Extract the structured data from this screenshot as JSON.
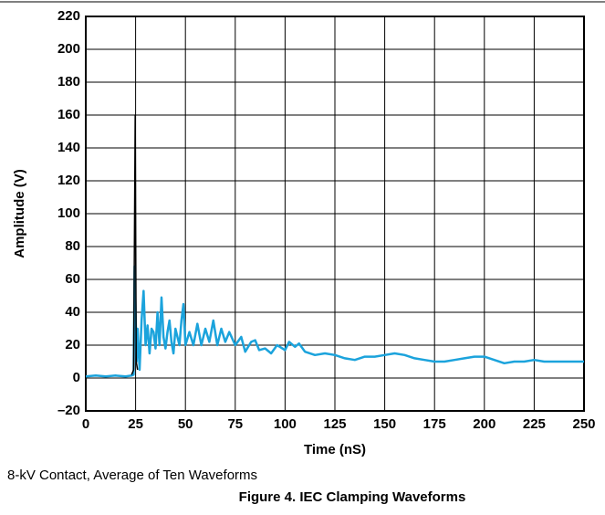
{
  "chart_data": {
    "type": "line",
    "caption": "8-kV Contact, Average of Ten Waveforms",
    "title": "Figure 4. IEC Clamping Waveforms",
    "x_label": "Time (nS)",
    "y_label": "Amplitude (V)",
    "xlim": [
      0,
      250
    ],
    "xticks": [
      0,
      25,
      50,
      75,
      100,
      125,
      150,
      175,
      200,
      225,
      250
    ],
    "ylim": [
      -20,
      220
    ],
    "yticks": [
      {
        "value": -20,
        "label": "–20"
      },
      0,
      20,
      40,
      60,
      80,
      100,
      120,
      140,
      160,
      180,
      200,
      220
    ],
    "grid": true,
    "series": [
      {
        "color": "#1ba3dc",
        "x": [
          0,
          5,
          10,
          15,
          20,
          23,
          24,
          24.5,
          25,
          25.5,
          26,
          27,
          28,
          29,
          30,
          31,
          32,
          33,
          34,
          35,
          36,
          37,
          38,
          39,
          40,
          41,
          42,
          43,
          44,
          45,
          46,
          47,
          48,
          49,
          50,
          52,
          54,
          56,
          58,
          60,
          62,
          64,
          66,
          68,
          70,
          72,
          75,
          78,
          80,
          83,
          85,
          87,
          90,
          93,
          96,
          100,
          102,
          105,
          107,
          110,
          115,
          120,
          125,
          130,
          135,
          140,
          145,
          150,
          155,
          160,
          165,
          170,
          175,
          180,
          185,
          190,
          195,
          200,
          205,
          210,
          215,
          220,
          225,
          230,
          235,
          240,
          245,
          250
        ],
        "values": [
          1,
          1.5,
          1,
          1.5,
          1,
          1.5,
          2,
          68,
          40,
          10,
          30,
          5,
          35,
          53,
          20,
          32,
          15,
          30,
          28,
          18,
          40,
          20,
          49,
          25,
          18,
          28,
          35,
          22,
          15,
          30,
          25,
          20,
          35,
          45,
          20,
          28,
          20,
          33,
          20,
          30,
          22,
          35,
          20,
          30,
          22,
          28,
          20,
          25,
          16,
          22,
          23,
          17,
          18,
          15,
          20,
          17,
          22,
          19,
          21,
          16,
          14,
          15,
          14,
          12,
          11,
          13,
          13,
          14,
          15,
          14,
          12,
          11,
          10,
          10,
          11,
          12,
          13,
          13,
          11,
          9,
          10,
          10,
          11,
          10,
          10,
          10,
          10,
          10
        ]
      },
      {
        "color": "#000000",
        "x": [
          23,
          24,
          24.8,
          25.3,
          26
        ],
        "values": [
          2,
          5,
          160,
          10,
          5
        ]
      }
    ]
  }
}
